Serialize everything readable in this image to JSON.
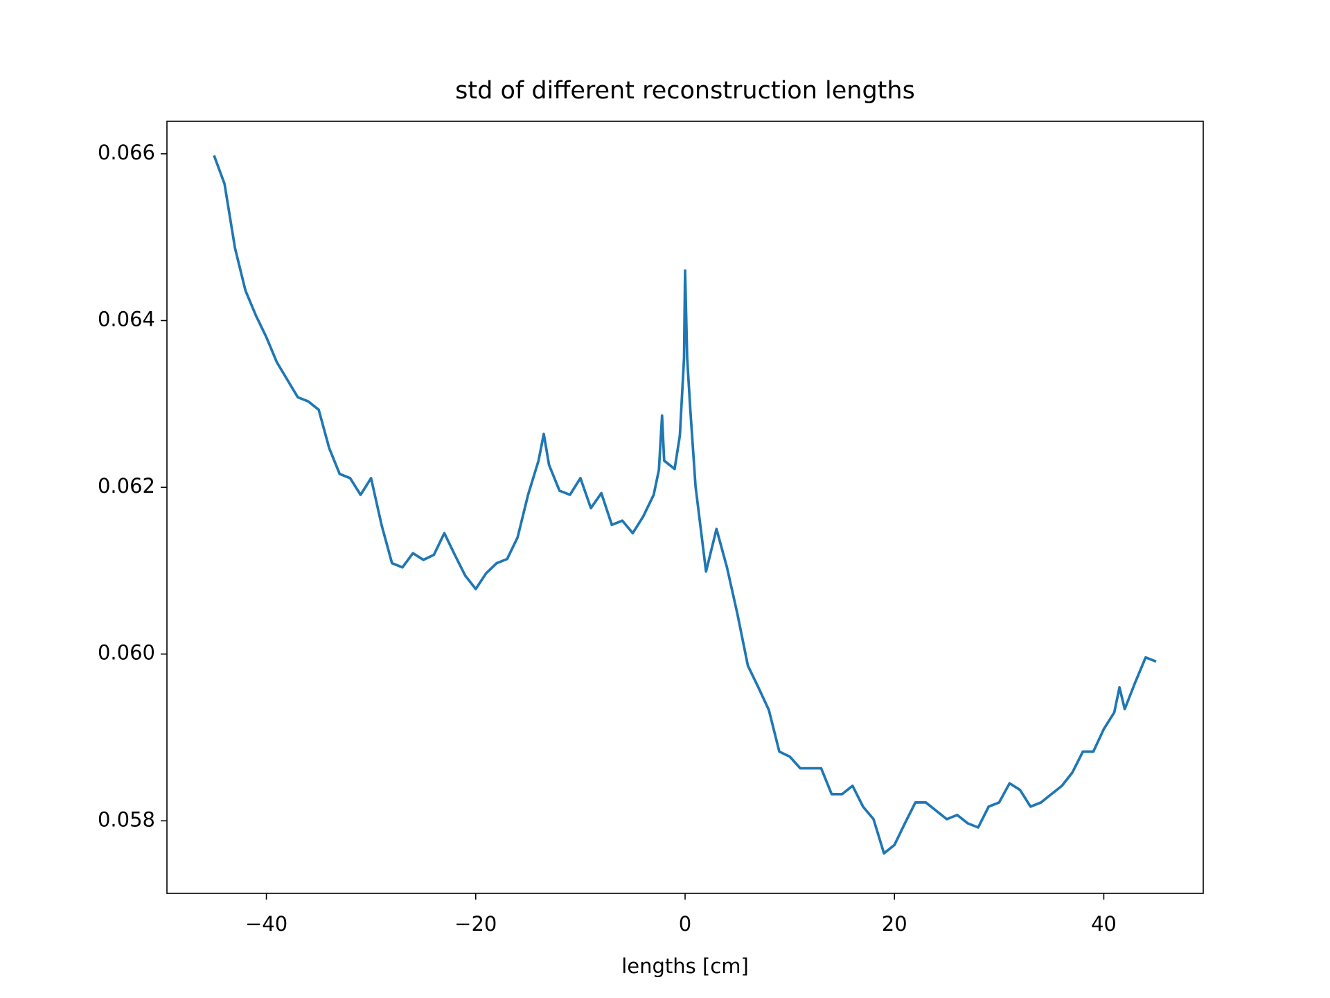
{
  "chart_data": {
    "type": "line",
    "title": "std of different reconstruction lengths",
    "x_label": "lengths [cm]",
    "x": [
      -45,
      -44,
      -43,
      -42,
      -41,
      -40,
      -39,
      -38,
      -37,
      -36,
      -35,
      -34,
      -33,
      -32,
      -31,
      -30,
      -29,
      -28,
      -27,
      -26,
      -25,
      -24,
      -23,
      -22,
      -21,
      -20,
      -19,
      -18,
      -17,
      -16,
      -15,
      -14,
      -13.5,
      -13,
      -12,
      -11,
      -10,
      -9,
      -8,
      -7,
      -6,
      -5,
      -4,
      -3,
      -2.5,
      -2.2,
      -2,
      -1,
      -0.5,
      -0.1,
      0,
      0.2,
      0.5,
      1,
      2,
      3,
      4,
      5,
      6,
      7,
      8,
      9,
      10,
      11,
      12,
      13,
      14,
      15,
      16,
      17,
      18,
      19,
      20,
      21,
      22,
      23,
      24,
      25,
      26,
      27,
      28,
      29,
      30,
      31,
      32,
      33,
      34,
      35,
      36,
      37,
      38,
      39,
      40,
      41,
      41.5,
      42,
      43,
      44,
      45
    ],
    "series": [
      {
        "name": "std",
        "color": "#1f77b4",
        "values": [
          0.06598,
          0.06564,
          0.06487,
          0.06436,
          0.06406,
          0.0638,
          0.0635,
          0.06329,
          0.06308,
          0.06303,
          0.06293,
          0.06247,
          0.06216,
          0.06211,
          0.06191,
          0.06211,
          0.06155,
          0.06109,
          0.06104,
          0.06121,
          0.06113,
          0.06119,
          0.06145,
          0.06119,
          0.06094,
          0.06078,
          0.06097,
          0.06109,
          0.06114,
          0.0614,
          0.06191,
          0.06232,
          0.06264,
          0.06227,
          0.06196,
          0.06191,
          0.06211,
          0.06175,
          0.06193,
          0.06155,
          0.0616,
          0.06145,
          0.06165,
          0.06191,
          0.06221,
          0.06286,
          0.06232,
          0.06222,
          0.06262,
          0.06355,
          0.0646,
          0.06355,
          0.06293,
          0.06201,
          0.06099,
          0.0615,
          0.06104,
          0.06048,
          0.05986,
          0.0596,
          0.05933,
          0.05883,
          0.05877,
          0.05863,
          0.05863,
          0.05863,
          0.05832,
          0.05832,
          0.05842,
          0.05817,
          0.05802,
          0.05761,
          0.05771,
          0.05797,
          0.05822,
          0.05822,
          0.05812,
          0.05802,
          0.05807,
          0.05797,
          0.05792,
          0.05817,
          0.05822,
          0.05845,
          0.05837,
          0.05817,
          0.05822,
          0.05832,
          0.05842,
          0.05858,
          0.05883,
          0.05883,
          0.0591,
          0.0593,
          0.0596,
          0.05934,
          0.05966,
          0.05996,
          0.05991
        ]
      }
    ],
    "xlim": [
      -49.5,
      49.5
    ],
    "ylim": [
      0.05713,
      0.06639
    ],
    "xticks": [
      {
        "value": -40,
        "label": "−40"
      },
      {
        "value": -20,
        "label": "−20"
      },
      0,
      20,
      40
    ],
    "yticks": [
      0.058,
      {
        "value": 0.06,
        "label": "0.060"
      },
      0.062,
      0.064,
      0.066
    ]
  }
}
